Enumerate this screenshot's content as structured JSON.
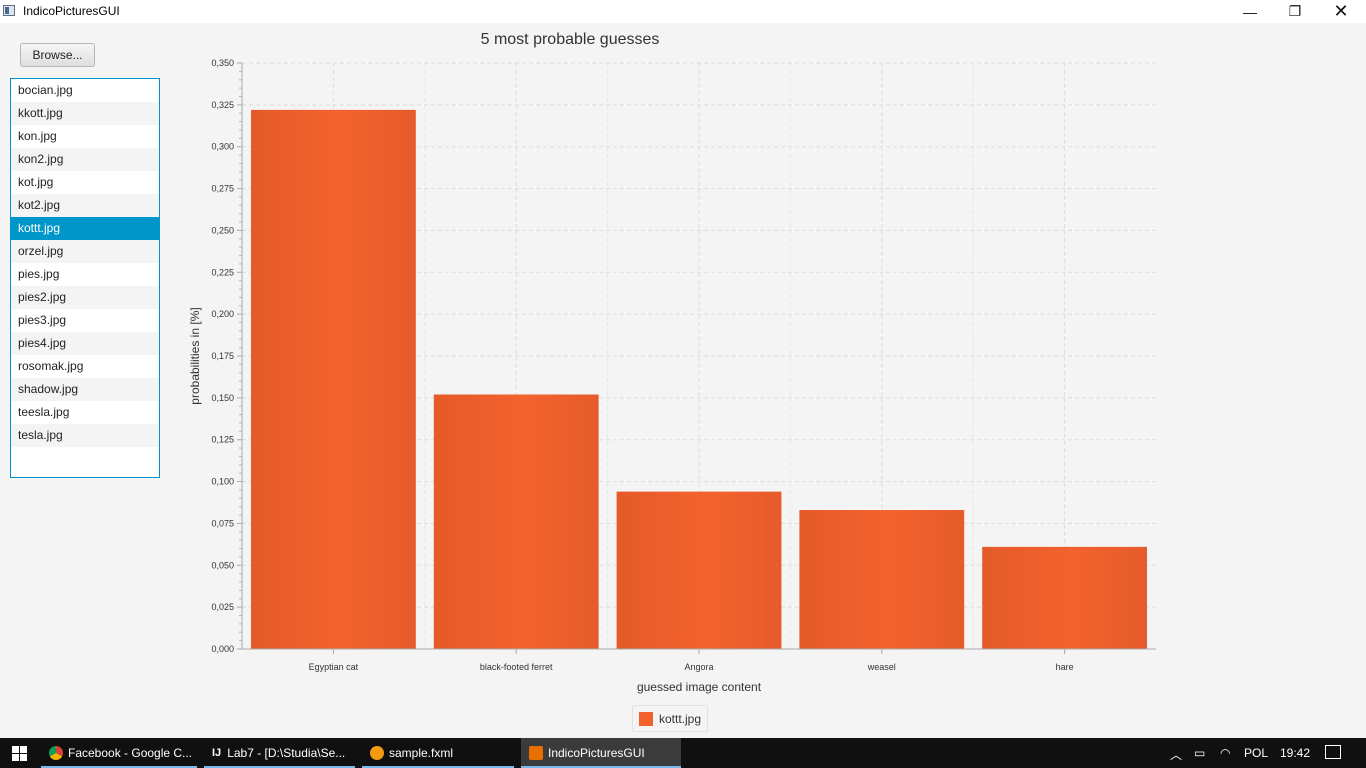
{
  "window": {
    "title": "IndicoPicturesGUI"
  },
  "controls": {
    "minimize": "—",
    "maximize": "❐",
    "close": "✕"
  },
  "browse_label": "Browse...",
  "files": [
    "bocian.jpg",
    "kkott.jpg",
    "kon.jpg",
    "kon2.jpg",
    "kot.jpg",
    "kot2.jpg",
    "kottt.jpg",
    "orzel.jpg",
    "pies.jpg",
    "pies2.jpg",
    "pies3.jpg",
    "pies4.jpg",
    "rosomak.jpg",
    "shadow.jpg",
    "teesla.jpg",
    "tesla.jpg"
  ],
  "selected_file": "kottt.jpg",
  "chart_data": {
    "type": "bar",
    "title": "5 most probable guesses",
    "xlabel": "guessed image content",
    "ylabel": "probabilities in [%]",
    "categories": [
      "Egyptian cat",
      "black-footed ferret",
      "Angora",
      "weasel",
      "hare"
    ],
    "series": [
      {
        "name": "kottt.jpg",
        "values": [
          0.322,
          0.152,
          0.094,
          0.083,
          0.061
        ]
      }
    ],
    "ylim": [
      0,
      0.35
    ],
    "yticks": [
      "0,000",
      "0,025",
      "0,050",
      "0,075",
      "0,100",
      "0,125",
      "0,150",
      "0,175",
      "0,200",
      "0,225",
      "0,250",
      "0,275",
      "0,300",
      "0,325",
      "0,350"
    ],
    "grid": true,
    "legend": "bottom-center",
    "bar_color": "#f3622d"
  },
  "taskbar": {
    "items": [
      {
        "label": "Facebook - Google C...",
        "icon": "chrome-icon"
      },
      {
        "label": "Lab7 - [D:\\Studia\\Se...",
        "icon": "intellij-icon"
      },
      {
        "label": "sample.fxml",
        "icon": "scene-builder-icon"
      },
      {
        "label": "IndicoPicturesGUI",
        "icon": "java-icon"
      }
    ],
    "lang": "POL",
    "time": "19:42"
  }
}
